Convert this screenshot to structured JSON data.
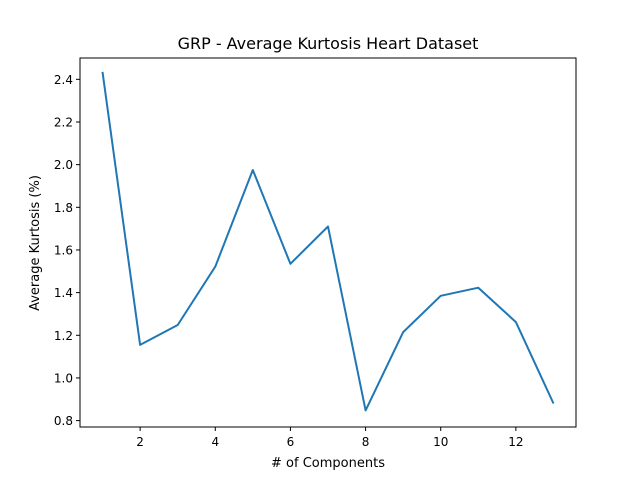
{
  "chart_data": {
    "type": "line",
    "title": "GRP - Average Kurtosis Heart Dataset",
    "xlabel": "# of Components",
    "ylabel": "Average Kurtosis (%)",
    "x": [
      1,
      2,
      3,
      4,
      5,
      6,
      7,
      8,
      9,
      10,
      11,
      12,
      13
    ],
    "series": [
      {
        "values": [
          2.435,
          1.155,
          1.248,
          1.522,
          1.975,
          1.535,
          1.71,
          0.848,
          1.215,
          1.385,
          1.423,
          1.262,
          0.88
        ],
        "color": "#1f77b4"
      }
    ],
    "xlim": [
      0.4,
      13.6
    ],
    "ylim": [
      0.77,
      2.5
    ],
    "xticks": [
      2,
      4,
      6,
      8,
      10,
      12
    ],
    "xtick_labels": [
      "2",
      "4",
      "6",
      "8",
      "10",
      "12"
    ],
    "yticks": [
      0.8,
      1.0,
      1.2,
      1.4,
      1.6,
      1.8,
      2.0,
      2.2,
      2.4
    ],
    "ytick_labels": [
      "0.8",
      "1.0",
      "1.2",
      "1.4",
      "1.6",
      "1.8",
      "2.0",
      "2.2",
      "2.4"
    ],
    "grid": false,
    "legend": "none"
  }
}
